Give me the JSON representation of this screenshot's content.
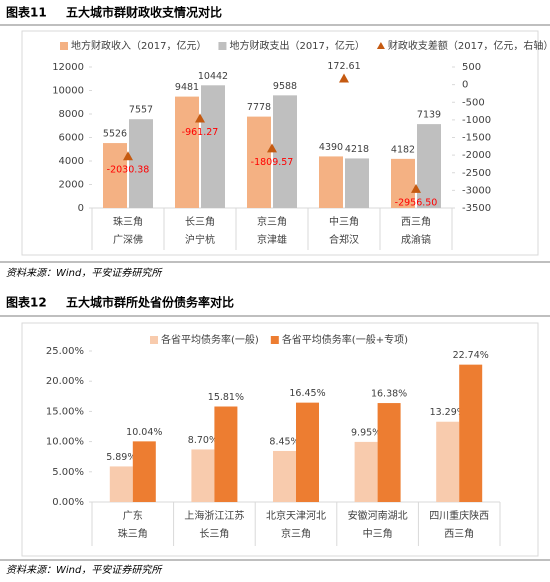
{
  "chart_data": [
    {
      "type": "bar",
      "figure_label": "图表11",
      "title": "五大城市群财政收支情况对比",
      "source": "资料来源：Wind，平安证券研究所",
      "categories": [
        "珠三角",
        "长三角",
        "京三角",
        "中三角",
        "西三角"
      ],
      "subcategories": [
        "广深佛",
        "沪宁杭",
        "京津雄",
        "合郑汉",
        "成渝镐"
      ],
      "series": [
        {
          "name": "地方财政收入（2017，亿元）",
          "color": "#f4b183",
          "values": [
            5526,
            9481,
            7778,
            4390,
            4182
          ]
        },
        {
          "name": "地方财政支出（2017，亿元）",
          "color": "#bfbfbf",
          "values": [
            7557,
            10442,
            9588,
            4218,
            7139
          ]
        },
        {
          "name": "财政收支差额（2017，亿元，右轴）",
          "color": "#c55a11",
          "marker": "triangle",
          "axis": "y2",
          "values": [
            -2030.38,
            -961.27,
            -1809.57,
            172.61,
            -2956.5
          ],
          "value_labels": [
            "-2030.38",
            "-961.27",
            "-1809.57",
            "172.61",
            "-2956.50"
          ]
        }
      ],
      "ylim": [
        0,
        12000
      ],
      "yticks": [
        0,
        2000,
        4000,
        6000,
        8000,
        10000,
        12000
      ],
      "y2lim": [
        -3500,
        500
      ],
      "y2ticks": [
        -3500,
        -3000,
        -2500,
        -2000,
        -1500,
        -1000,
        -500,
        0,
        500
      ],
      "grid": false
    },
    {
      "type": "bar",
      "figure_label": "图表12",
      "title": "五大城市群所处省份债务率对比",
      "source": "资料来源：Wind，平安证券研究所",
      "categories": [
        "广东",
        "上海浙江江苏",
        "北京天津河北",
        "安徽河南湖北",
        "四川重庆陕西"
      ],
      "subcategories": [
        "珠三角",
        "长三角",
        "京三角",
        "中三角",
        "西三角"
      ],
      "series": [
        {
          "name": "各省平均债务率(一般)",
          "color": "#f8cbad",
          "values": [
            5.89,
            8.7,
            8.45,
            9.95,
            13.29
          ],
          "value_labels": [
            "5.89%",
            "8.70%",
            "8.45%",
            "9.95%",
            "13.29%"
          ]
        },
        {
          "name": "各省平均债务率(一般+专项)",
          "color": "#ed7d31",
          "values": [
            10.04,
            15.81,
            16.45,
            16.38,
            22.74
          ],
          "value_labels": [
            "10.04%",
            "15.81%",
            "16.45%",
            "16.38%",
            "22.74%"
          ]
        }
      ],
      "ylim": [
        0,
        25
      ],
      "yticks": [
        {
          "value": 0,
          "label": "0.00%"
        },
        {
          "value": 5,
          "label": "5.00%"
        },
        {
          "value": 10,
          "label": "10.00%"
        },
        {
          "value": 15,
          "label": "15.00%"
        },
        {
          "value": 20,
          "label": "20.00%"
        },
        {
          "value": 25,
          "label": "25.00%"
        }
      ],
      "grid": false
    }
  ]
}
